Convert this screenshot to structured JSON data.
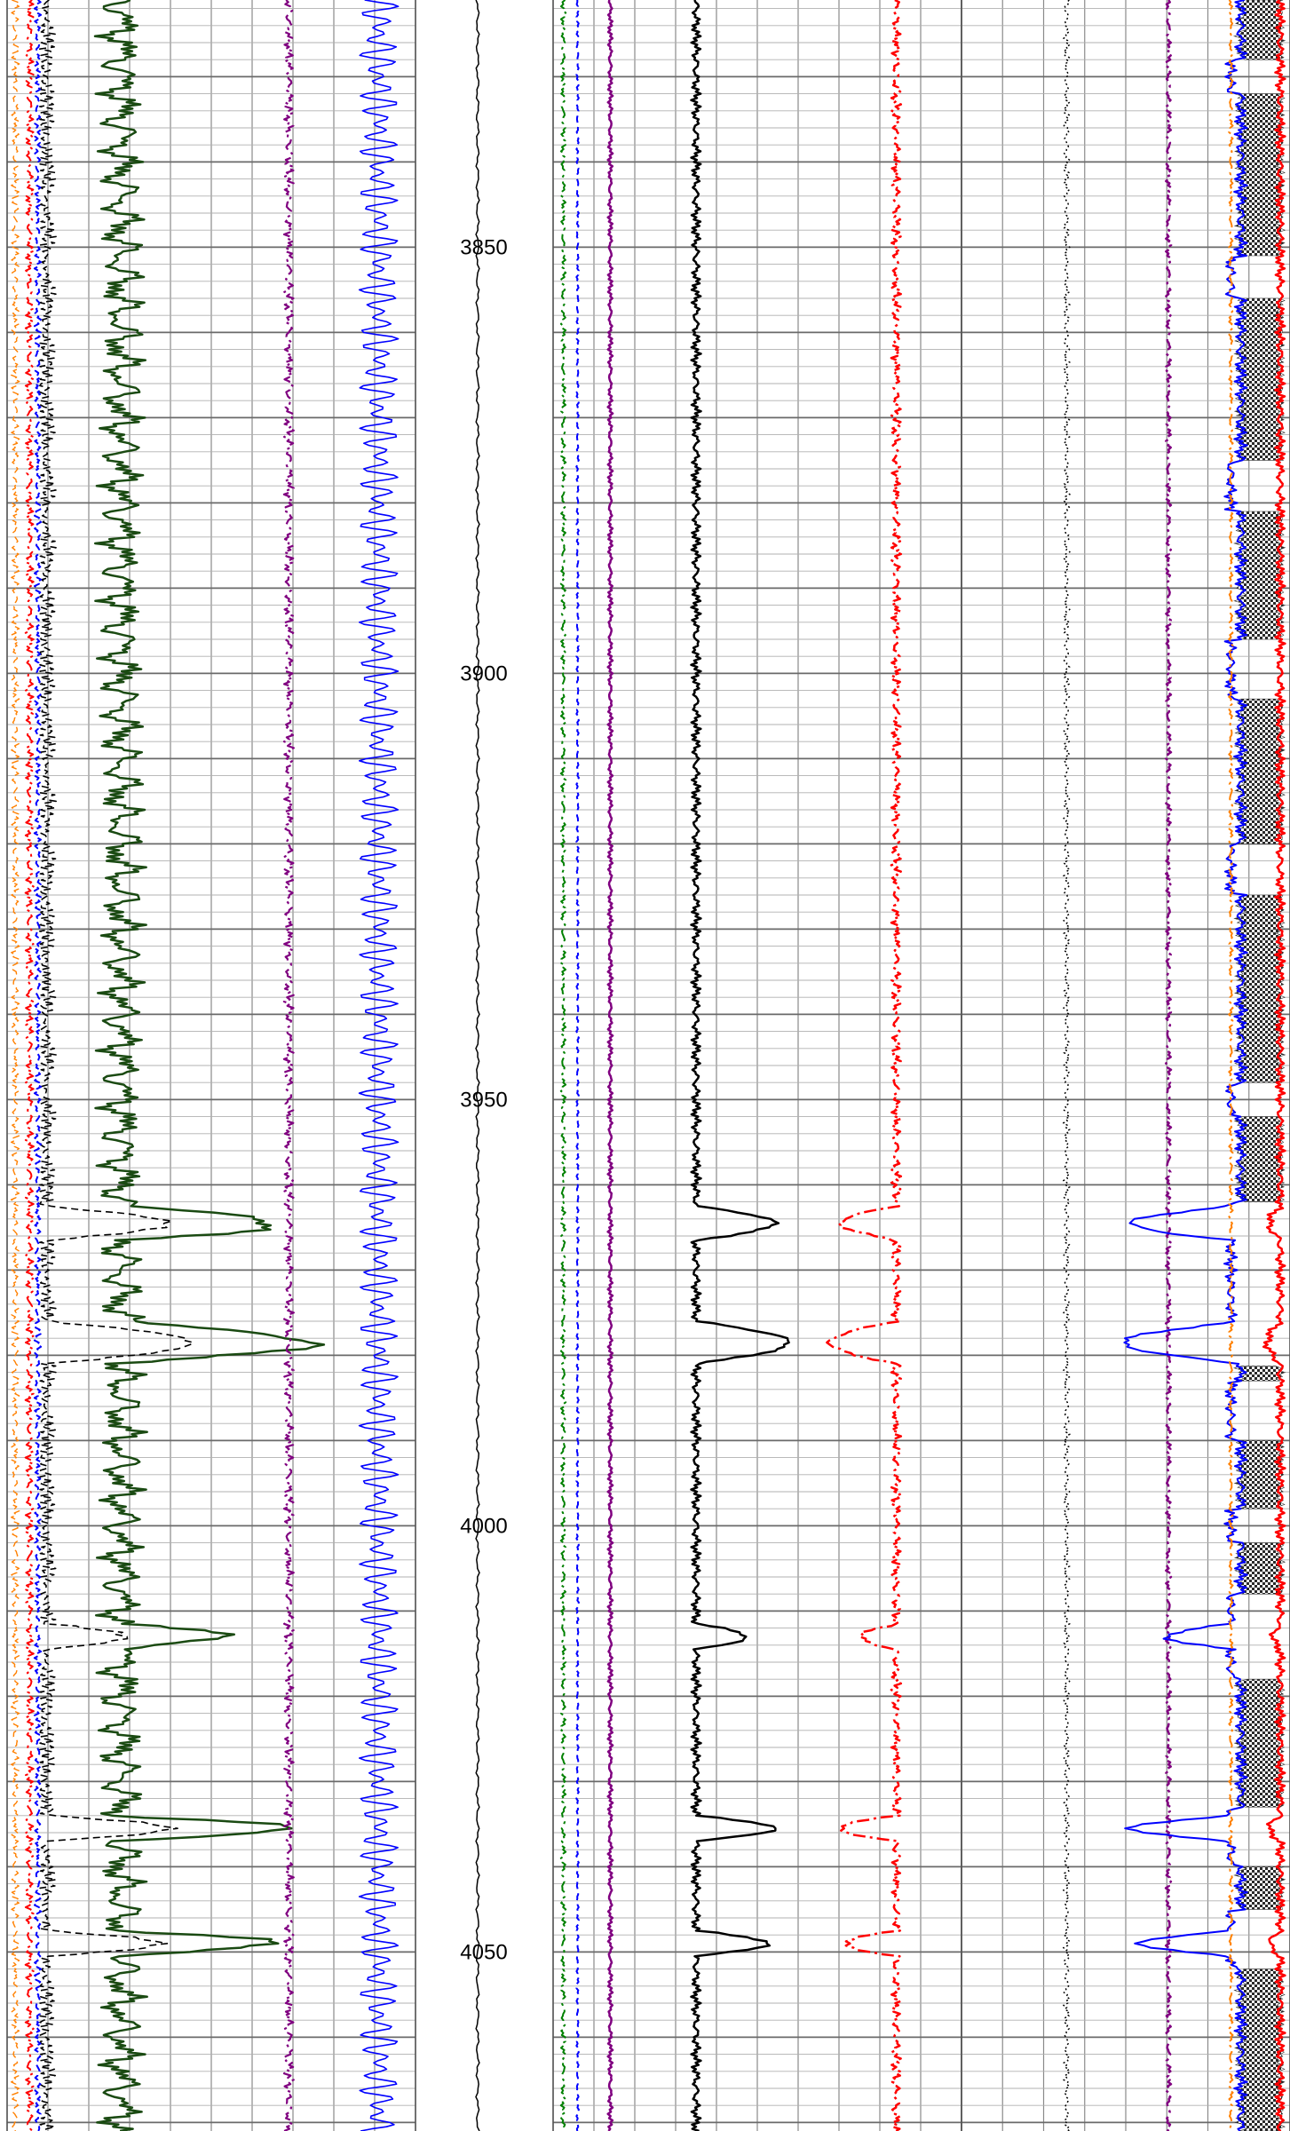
{
  "chart_data": {
    "type": "line",
    "title": "",
    "depth_axis": {
      "label": "",
      "range": [
        3821,
        4071
      ],
      "tick_labels": [
        "3850",
        "3900",
        "3950",
        "4000",
        "4050"
      ],
      "tick_values": [
        3850,
        3900,
        3950,
        4000,
        4050
      ],
      "minor_step": 5,
      "major_step": 10
    },
    "grid": true,
    "legend": "none",
    "shale_intervals": [
      [
        3821,
        3828
      ],
      [
        3832,
        3851
      ],
      [
        3856,
        3875
      ],
      [
        3881,
        3896
      ],
      [
        3903,
        3920
      ],
      [
        3926,
        3948
      ],
      [
        3952,
        3962
      ],
      [
        3976,
        3983
      ],
      [
        3990,
        3998
      ],
      [
        4002,
        4008
      ],
      [
        4018,
        4033
      ],
      [
        4040,
        4045
      ],
      [
        4052,
        4071
      ]
    ],
    "sand_intervals": [
      [
        3962.5,
        3966.5,
        0.55
      ],
      [
        3976,
        3981,
        0.65
      ],
      [
        4011.5,
        4014.5,
        0.35
      ],
      [
        4034,
        4037,
        0.55
      ],
      [
        4047.5,
        4050.5,
        0.5
      ]
    ],
    "series": [
      {
        "track": 1,
        "style": "solid",
        "color": "#1a4a12",
        "kind": "gamma",
        "base": 0.28,
        "noise": 0.035,
        "width": 2.5
      },
      {
        "track": 1,
        "style": "dashed",
        "color": "#000000",
        "kind": "spikes",
        "base": 0.08,
        "noise": 0.02,
        "width": 1.6
      },
      {
        "track": 1,
        "style": "dashdot",
        "color": "#800080",
        "kind": "flat",
        "base": 0.69,
        "noise": 0.012,
        "width": 2.2
      },
      {
        "track": 1,
        "style": "solid",
        "color": "#0000ff",
        "kind": "noisy",
        "base": 0.91,
        "noise": 0.03,
        "width": 1.6
      },
      {
        "track": 1,
        "style": "dashed",
        "color": "#ff8000",
        "kind": "flat",
        "base": 0.02,
        "noise": 0.01,
        "width": 1.4
      },
      {
        "track": 1,
        "style": "dashdot",
        "color": "#ff0000",
        "kind": "flat",
        "base": 0.055,
        "noise": 0.01,
        "width": 2
      },
      {
        "track": 1,
        "style": "dashed",
        "color": "#0000ff",
        "kind": "flat",
        "base": 0.075,
        "noise": 0.008,
        "width": 2
      },
      {
        "track": 2,
        "style": "dashdot",
        "color": "#008000",
        "kind": "flat",
        "base": 0.025,
        "noise": 0.006,
        "width": 2
      },
      {
        "track": 2,
        "style": "dashed",
        "color": "#0000ff",
        "kind": "flat",
        "base": 0.06,
        "noise": 0.003,
        "width": 2
      },
      {
        "track": 2,
        "style": "solid",
        "color": "#800080",
        "kind": "flat",
        "base": 0.14,
        "noise": 0.006,
        "width": 2.5
      },
      {
        "track": 2,
        "style": "solid",
        "color": "#000000",
        "kind": "sonic",
        "base": 0.35,
        "noise": 0.012,
        "width": 2.5
      },
      {
        "track": 2,
        "style": "dashdot",
        "color": "#ff0000",
        "kind": "density",
        "base": 0.84,
        "noise": 0.012,
        "width": 2.5
      },
      {
        "track": 3,
        "style": "dotted",
        "color": "#000000",
        "kind": "flat",
        "base": 0.32,
        "noise": 0.01,
        "width": 1.5
      },
      {
        "track": 3,
        "style": "dashdot",
        "color": "#800080",
        "kind": "flat",
        "base": 0.63,
        "noise": 0.008,
        "width": 2.5
      },
      {
        "track": 3,
        "style": "solid",
        "color": "#0000ff",
        "kind": "neutron",
        "base": 0.85,
        "noise": 0.02,
        "width": 2
      },
      {
        "track": 3,
        "style": "dashdot",
        "color": "#ff8000",
        "kind": "flat",
        "base": 0.82,
        "noise": 0.006,
        "width": 2
      },
      {
        "track": 3,
        "style": "solid",
        "color": "#ff0000",
        "kind": "deep_res",
        "base": 0.97,
        "noise": 0.015,
        "width": 2.5
      }
    ]
  }
}
